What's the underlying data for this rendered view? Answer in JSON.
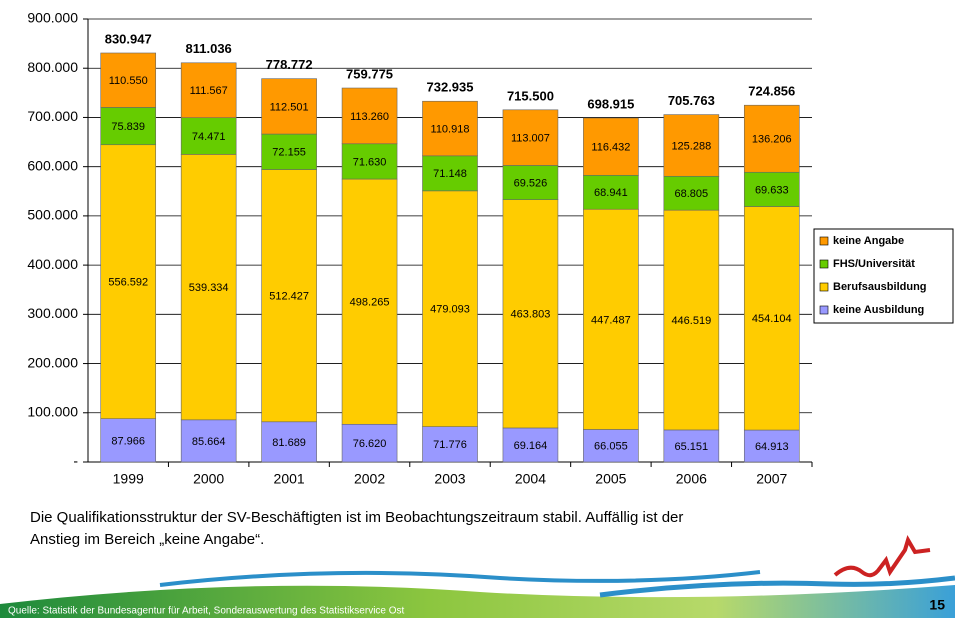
{
  "chart_data": {
    "type": "stacked-bar",
    "categories": [
      "1999",
      "2000",
      "2001",
      "2002",
      "2003",
      "2004",
      "2005",
      "2006",
      "2007"
    ],
    "series": [
      {
        "name": "keine Ausbildung",
        "color": "#9999ff",
        "values": [
          87966,
          85664,
          81689,
          76620,
          71776,
          69164,
          66055,
          65151,
          64913
        ],
        "value_labels": [
          "87.966",
          "85.664",
          "81.689",
          "76.620",
          "71.776",
          "69.164",
          "66.055",
          "65.151",
          "64.913"
        ]
      },
      {
        "name": "Berufsausbildung",
        "color": "#ffcc00",
        "values": [
          556592,
          539334,
          512427,
          498265,
          479093,
          463803,
          447487,
          446519,
          454104
        ],
        "value_labels": [
          "556.592",
          "539.334",
          "512.427",
          "498.265",
          "479.093",
          "463.803",
          "447.487",
          "446.519",
          "454.104"
        ]
      },
      {
        "name": "FHS/Universität",
        "color": "#66cc00",
        "values": [
          75839,
          74471,
          72155,
          71630,
          71148,
          69526,
          68941,
          68805,
          69633
        ],
        "value_labels": [
          "75.839",
          "74.471",
          "72.155",
          "71.630",
          "71.148",
          "69.526",
          "68.941",
          "68.805",
          "69.633"
        ]
      },
      {
        "name": "keine Angabe",
        "color": "#ff9900",
        "values": [
          110550,
          111567,
          112501,
          113260,
          110918,
          113007,
          116432,
          125288,
          136206
        ],
        "value_labels": [
          "110.550",
          "111.567",
          "112.501",
          "113.260",
          "110.918",
          "113.007",
          "116.432",
          "125.288",
          "136.206"
        ]
      }
    ],
    "totals": {
      "values": [
        830947,
        811036,
        778772,
        759775,
        732935,
        715500,
        698915,
        705763,
        724856
      ],
      "value_labels": [
        "830.947",
        "811.036",
        "778.772",
        "759.775",
        "732.935",
        "715.500",
        "698.915",
        "705.763",
        "724.856"
      ]
    },
    "ylim": [
      0,
      900000
    ],
    "yticks": [
      {
        "value": 0,
        "label": "-"
      },
      {
        "value": 100000,
        "label": "100.000"
      },
      {
        "value": 200000,
        "label": "200.000"
      },
      {
        "value": 300000,
        "label": "300.000"
      },
      {
        "value": 400000,
        "label": "400.000"
      },
      {
        "value": 500000,
        "label": "500.000"
      },
      {
        "value": 600000,
        "label": "600.000"
      },
      {
        "value": 700000,
        "label": "700.000"
      },
      {
        "value": 800000,
        "label": "800.000"
      },
      {
        "value": 900000,
        "label": "900.000"
      }
    ],
    "grid": true,
    "legend": "right"
  },
  "slide": {
    "caption_lines": [
      "Die Qualifikationsstruktur der SV-Beschäftigten ist im Beobachtungszeitraum stabil. Auffällig ist der",
      "Anstieg im Bereich „keine Angabe“."
    ],
    "source": "Quelle: Statistik der Bundesagentur für Arbeit, Sonderauswertung des Statistikservice Ost",
    "page_number": "15"
  }
}
